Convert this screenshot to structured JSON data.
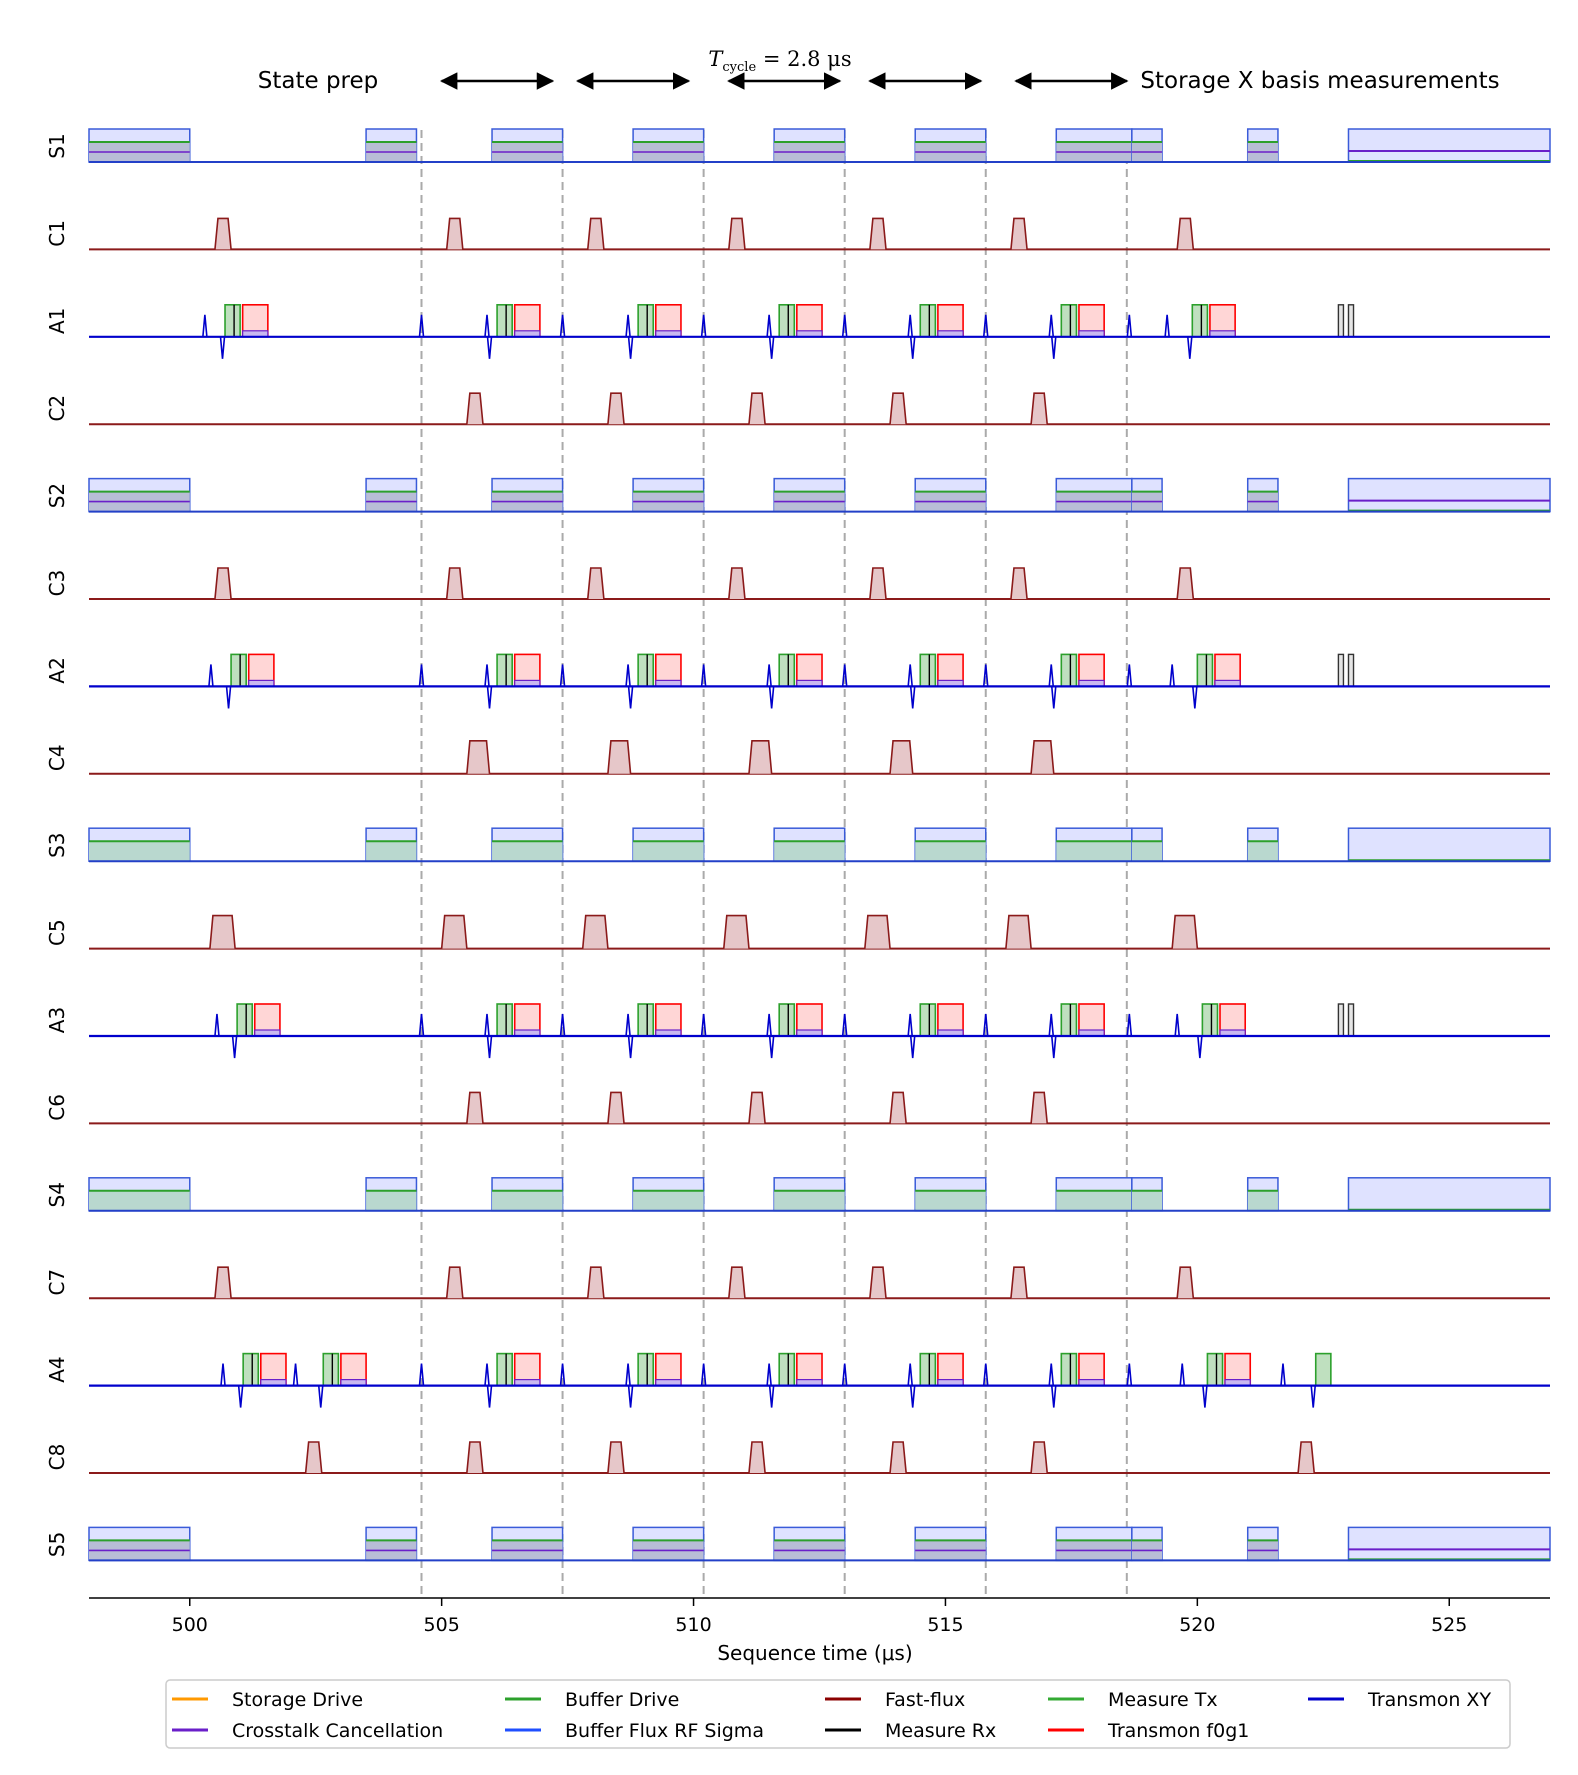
{
  "chart_data": {
    "type": "line",
    "title": "",
    "xlabel": "Sequence time (μs)",
    "ylabel": "",
    "xlim": [
      498,
      527
    ],
    "xticks": [
      500,
      505,
      510,
      515,
      520,
      525
    ],
    "xtick_labels": [
      "500",
      "505",
      "510",
      "515",
      "520",
      "525"
    ],
    "channels": [
      "S1",
      "C1",
      "A1",
      "C2",
      "S2",
      "C3",
      "A2",
      "C4",
      "S3",
      "C5",
      "A3",
      "C6",
      "S4",
      "C7",
      "A4",
      "C8",
      "S5"
    ],
    "cycle_boundaries": [
      504.6,
      507.4,
      510.2,
      513.0,
      515.8,
      518.6
    ],
    "annotations": {
      "left": "State prep",
      "right": "Storage X basis measurements",
      "cycle_prefix": "T",
      "cycle_sub": "cycle",
      "cycle_eq": " = 2.8 μs"
    },
    "cycle_arrows": [
      [
        505.0,
        507.2
      ],
      [
        507.7,
        509.9
      ],
      [
        510.7,
        512.9
      ],
      [
        513.5,
        515.7
      ],
      [
        516.4,
        518.6
      ]
    ],
    "legend": [
      {
        "name": "Storage Drive",
        "color": "#ff9900"
      },
      {
        "name": "Crosstalk Cancellation",
        "color": "#6a1fc9"
      },
      {
        "name": "Buffer Drive",
        "color": "#2ca02c"
      },
      {
        "name": "Buffer Flux RF Sigma",
        "color": "#1f4fff"
      },
      {
        "name": "Fast-flux",
        "color": "#8b0000"
      },
      {
        "name": "Measure Rx",
        "color": "#000000"
      },
      {
        "name": "Measure Tx",
        "color": "#33aa33"
      },
      {
        "name": "Transmon f0g1",
        "color": "#ff0000"
      },
      {
        "name": "Transmon XY",
        "color": "#0000cc"
      }
    ],
    "storage_windows": [
      [
        498,
        500
      ],
      [
        503.5,
        504.5
      ],
      [
        506,
        507.4
      ],
      [
        508.8,
        510.2
      ],
      [
        511.6,
        513.0
      ],
      [
        514.4,
        515.8
      ],
      [
        517.2,
        518.7
      ],
      [
        518.7,
        519.3
      ],
      [
        521,
        521.6
      ],
      [
        523,
        527
      ]
    ],
    "coupler_pulses_odd": [
      500.5,
      505.1,
      507.9,
      510.7,
      513.5,
      516.3,
      519.6
    ],
    "coupler_pulses_even": [
      505.5,
      508.3,
      511.1,
      513.9,
      516.7
    ],
    "coupler_pulses_c8_extra": [
      502.3,
      522.0
    ],
    "ancilla_cycle_starts": [
      506.0,
      508.8,
      511.6,
      514.4,
      517.2
    ],
    "ancilla_prep_start": 500.7,
    "ancilla_meas_start": 519.9,
    "ancilla_rx_markers": [
      522.8,
      523.0
    ]
  }
}
